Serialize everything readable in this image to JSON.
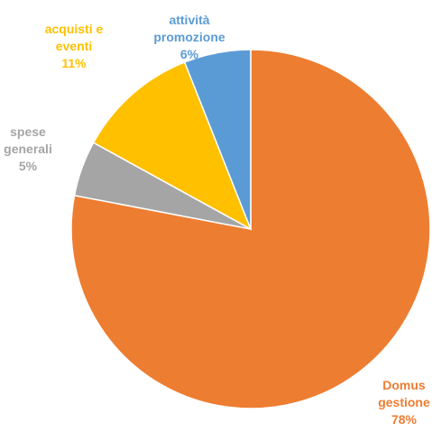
{
  "chart_data": {
    "type": "pie",
    "start_angle_deg": 0,
    "direction": "clockwise",
    "slices": [
      {
        "label_lines": [
          "Domus",
          "gestione"
        ],
        "pct_text": "78%",
        "value": 78,
        "color": "#ED7D31",
        "label_color": "#ED7D31"
      },
      {
        "label_lines": [
          "spese",
          "generali"
        ],
        "pct_text": "5%",
        "value": 5,
        "color": "#A5A5A5",
        "label_color": "#A5A5A5"
      },
      {
        "label_lines": [
          "acquisti e",
          "eventi"
        ],
        "pct_text": "11%",
        "value": 11,
        "color": "#FFC000",
        "label_color": "#FFC000"
      },
      {
        "label_lines": [
          "attività",
          "promozione"
        ],
        "pct_text": "6%",
        "value": 6,
        "color": "#5B9BD5",
        "label_color": "#5B9BD5"
      }
    ]
  }
}
